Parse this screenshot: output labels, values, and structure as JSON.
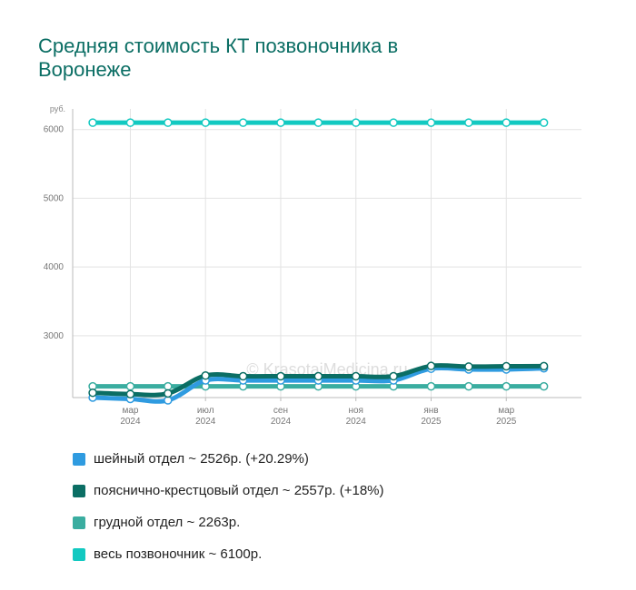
{
  "chart_data": {
    "type": "line",
    "title": "Средняя стоимость КТ позвоночника в Воронеже",
    "y_unit": "руб.",
    "ylim": [
      2100,
      6300
    ],
    "yticks": [
      3000,
      4000,
      5000,
      6000
    ],
    "x": [
      "2024-01",
      "2024-02",
      "2024-03",
      "2024-04",
      "2024-05",
      "2024-06",
      "2024-07",
      "2024-08",
      "2024-09",
      "2024-10",
      "2024-11",
      "2024-12",
      "2025-01"
    ],
    "xlim": [
      "2023-12-15",
      "2025-02"
    ],
    "xticks": [
      {
        "month": "мар",
        "year": "2024",
        "at": "2024-02"
      },
      {
        "month": "июл",
        "year": "2024",
        "at": "2024-04"
      },
      {
        "month": "сен",
        "year": "2024",
        "at": "2024-06"
      },
      {
        "month": "ноя",
        "year": "2024",
        "at": "2024-08"
      },
      {
        "month": "янв",
        "year": "2025",
        "at": "2024-10"
      },
      {
        "month": "мар",
        "year": "2025",
        "at": "2024-12"
      }
    ],
    "watermark": "© KrasotaiMedicina.ru",
    "grid": true,
    "legend_position": "bottom",
    "series": [
      {
        "name": "шейный отдел",
        "color": "#2f9be0",
        "values": [
          2100,
          2080,
          2060,
          2350,
          2350,
          2350,
          2350,
          2350,
          2350,
          2520,
          2510,
          2510,
          2526
        ]
      },
      {
        "name": "пояснично-крестцовый отдел",
        "color": "#0b6e64",
        "values": [
          2170,
          2150,
          2160,
          2420,
          2410,
          2410,
          2410,
          2410,
          2410,
          2560,
          2550,
          2555,
          2557
        ]
      },
      {
        "name": "грудной отдел",
        "color": "#3aada0",
        "values": [
          2263,
          2263,
          2263,
          2263,
          2263,
          2263,
          2263,
          2263,
          2263,
          2263,
          2263,
          2263,
          2263
        ]
      },
      {
        "name": "весь позвоночник",
        "color": "#12c9c1",
        "values": [
          6100,
          6100,
          6100,
          6100,
          6100,
          6100,
          6100,
          6100,
          6100,
          6100,
          6100,
          6100,
          6100
        ]
      }
    ]
  },
  "legend": [
    {
      "text": "шейный отдел ~ 2526р. (+20.29%)",
      "color": "#2f9be0"
    },
    {
      "text": "пояснично-крестцовый отдел ~ 2557р. (+18%)",
      "color": "#0b6e64"
    },
    {
      "text": "грудной отдел ~ 2263р.",
      "color": "#3aada0"
    },
    {
      "text": "весь позвоночник ~ 6100р.",
      "color": "#12c9c1"
    }
  ]
}
